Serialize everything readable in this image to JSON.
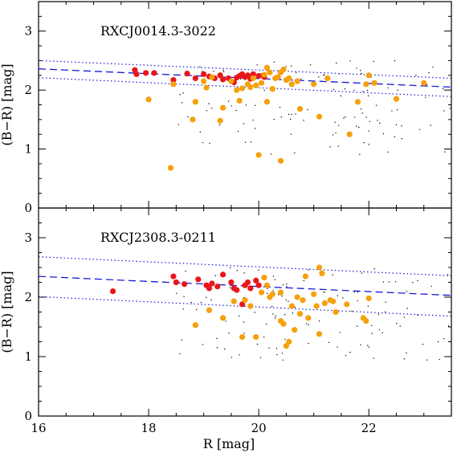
{
  "chart_data": [
    {
      "type": "scatter",
      "title": "RXCJ0014.3-3022",
      "xlabel": "",
      "ylabel": "(B−R) [mag]",
      "xlim": [
        16,
        23.5
      ],
      "ylim": [
        0,
        3.5
      ],
      "xticks": [
        16,
        18,
        20,
        22
      ],
      "yticks": [
        0,
        1,
        2,
        3
      ],
      "grid": false,
      "fit_lines": {
        "x": [
          16,
          23.5
        ],
        "center": [
          2.36,
          2.05
        ],
        "upper": [
          2.5,
          2.2
        ],
        "lower": [
          2.21,
          1.89
        ]
      },
      "series": [
        {
          "color": "#e8161a",
          "marker": "circle",
          "points": [
            [
              17.75,
              2.34
            ],
            [
              17.78,
              2.27
            ],
            [
              17.95,
              2.29
            ],
            [
              18.1,
              2.29
            ],
            [
              18.45,
              2.17
            ],
            [
              18.7,
              2.28
            ],
            [
              18.85,
              2.2
            ],
            [
              19.0,
              2.27
            ],
            [
              19.1,
              2.23
            ],
            [
              19.2,
              2.2
            ],
            [
              19.3,
              2.25
            ],
            [
              19.35,
              2.18
            ],
            [
              19.45,
              2.2
            ],
            [
              19.55,
              2.13
            ],
            [
              19.6,
              2.21
            ],
            [
              19.65,
              2.24
            ],
            [
              19.7,
              2.27
            ],
            [
              19.75,
              2.22
            ],
            [
              19.8,
              2.25
            ],
            [
              19.85,
              2.19
            ],
            [
              19.9,
              2.27
            ],
            [
              20.0,
              2.24
            ],
            [
              20.1,
              2.22
            ]
          ]
        },
        {
          "color": "#f5a00c",
          "marker": "circle",
          "points": [
            [
              18.0,
              1.84
            ],
            [
              18.4,
              0.68
            ],
            [
              18.45,
              2.1
            ],
            [
              18.8,
              1.5
            ],
            [
              18.85,
              1.8
            ],
            [
              19.0,
              2.15
            ],
            [
              19.05,
              2.04
            ],
            [
              19.15,
              2.22
            ],
            [
              19.3,
              1.48
            ],
            [
              19.35,
              1.7
            ],
            [
              19.5,
              2.15
            ],
            [
              19.6,
              2.0
            ],
            [
              19.65,
              1.82
            ],
            [
              19.7,
              2.03
            ],
            [
              19.8,
              2.1
            ],
            [
              19.85,
              2.05
            ],
            [
              19.9,
              2.2
            ],
            [
              19.95,
              2.08
            ],
            [
              20.0,
              0.9
            ],
            [
              20.05,
              2.12
            ],
            [
              20.1,
              2.26
            ],
            [
              20.15,
              1.8
            ],
            [
              20.15,
              2.38
            ],
            [
              20.2,
              2.3
            ],
            [
              20.25,
              2.02
            ],
            [
              20.3,
              2.2
            ],
            [
              20.35,
              2.22
            ],
            [
              20.4,
              2.3
            ],
            [
              20.4,
              0.8
            ],
            [
              20.45,
              2.35
            ],
            [
              20.5,
              2.17
            ],
            [
              20.55,
              2.2
            ],
            [
              20.6,
              2.1
            ],
            [
              20.7,
              2.15
            ],
            [
              20.75,
              1.68
            ],
            [
              21.0,
              2.1
            ],
            [
              21.1,
              1.55
            ],
            [
              21.25,
              2.2
            ],
            [
              21.65,
              1.25
            ],
            [
              21.8,
              1.8
            ],
            [
              21.95,
              2.1
            ],
            [
              22.0,
              2.25
            ],
            [
              22.1,
              2.12
            ],
            [
              22.5,
              1.85
            ],
            [
              23.0,
              2.12
            ]
          ]
        }
      ]
    },
    {
      "type": "scatter",
      "title": "RXCJ2308.3-0211",
      "xlabel": "R [mag]",
      "ylabel": "(B−R) [mag]",
      "xlim": [
        16,
        23.5
      ],
      "ylim": [
        0,
        3.5
      ],
      "xticks": [
        16,
        18,
        20,
        22
      ],
      "yticks": [
        0,
        1,
        2,
        3
      ],
      "grid": false,
      "fit_lines": {
        "x": [
          16,
          23.5
        ],
        "center": [
          2.35,
          2.03
        ],
        "upper": [
          2.68,
          2.36
        ],
        "lower": [
          2.01,
          1.68
        ]
      },
      "series": [
        {
          "color": "#e8161a",
          "marker": "circle",
          "points": [
            [
              17.35,
              2.1
            ],
            [
              18.45,
              2.35
            ],
            [
              18.5,
              2.25
            ],
            [
              18.65,
              2.22
            ],
            [
              18.9,
              2.3
            ],
            [
              19.05,
              2.2
            ],
            [
              19.1,
              2.15
            ],
            [
              19.15,
              2.23
            ],
            [
              19.25,
              2.18
            ],
            [
              19.35,
              2.38
            ],
            [
              19.5,
              2.25
            ],
            [
              19.55,
              2.15
            ],
            [
              19.6,
              2.12
            ],
            [
              19.7,
              1.88
            ],
            [
              19.75,
              2.2
            ],
            [
              19.8,
              2.25
            ],
            [
              19.85,
              2.15
            ],
            [
              19.95,
              2.28
            ],
            [
              20.0,
              2.2
            ]
          ]
        },
        {
          "color": "#f5a00c",
          "marker": "circle",
          "points": [
            [
              18.85,
              1.53
            ],
            [
              19.1,
              1.78
            ],
            [
              19.35,
              1.65
            ],
            [
              19.55,
              1.93
            ],
            [
              19.7,
              1.33
            ],
            [
              19.75,
              1.95
            ],
            [
              19.85,
              1.85
            ],
            [
              19.95,
              1.33
            ],
            [
              20.05,
              2.08
            ],
            [
              20.1,
              2.33
            ],
            [
              20.15,
              2.2
            ],
            [
              20.2,
              2.0
            ],
            [
              20.25,
              2.05
            ],
            [
              20.4,
              2.08
            ],
            [
              20.4,
              1.6
            ],
            [
              20.45,
              1.55
            ],
            [
              20.5,
              1.18
            ],
            [
              20.55,
              1.25
            ],
            [
              20.6,
              1.85
            ],
            [
              20.65,
              1.45
            ],
            [
              20.7,
              2.0
            ],
            [
              20.75,
              1.72
            ],
            [
              20.8,
              1.95
            ],
            [
              20.85,
              2.35
            ],
            [
              20.9,
              1.65
            ],
            [
              21.0,
              2.05
            ],
            [
              21.05,
              1.85
            ],
            [
              21.1,
              2.5
            ],
            [
              21.1,
              1.38
            ],
            [
              21.15,
              2.4
            ],
            [
              21.2,
              1.9
            ],
            [
              21.3,
              1.95
            ],
            [
              21.35,
              1.93
            ],
            [
              21.4,
              1.75
            ],
            [
              21.6,
              1.88
            ],
            [
              21.9,
              1.65
            ],
            [
              21.95,
              1.6
            ],
            [
              22.0,
              1.98
            ]
          ]
        }
      ]
    }
  ]
}
